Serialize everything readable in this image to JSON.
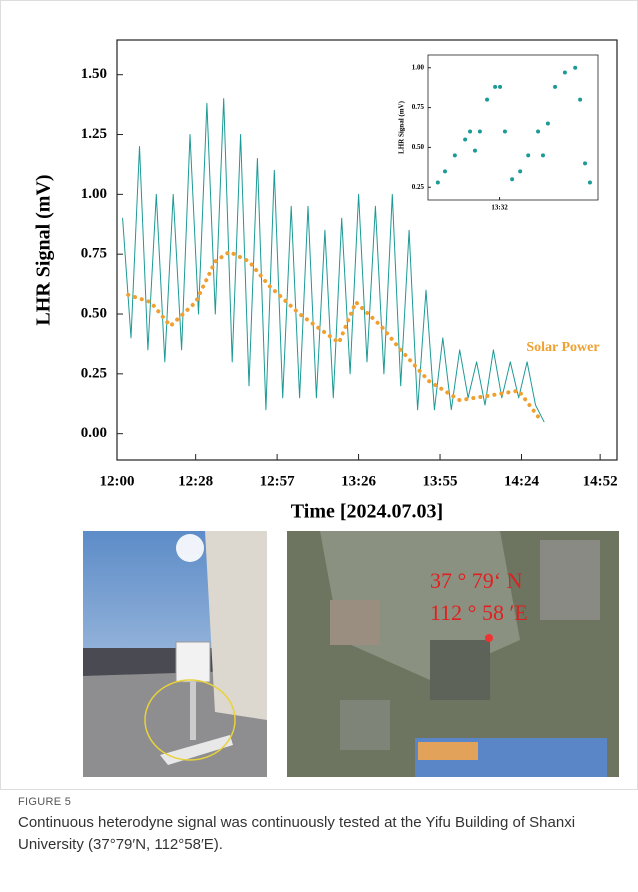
{
  "chart_data": [
    {
      "type": "line",
      "y_label": "LHR Signal (mV)",
      "x_label": "Time  [2024.07.03]",
      "xlim": [
        720,
        898
      ],
      "ylim": [
        -0.11,
        1.645
      ],
      "xticks": [
        {
          "value": 720,
          "label": "12:00"
        },
        {
          "value": 748,
          "label": "12:28"
        },
        {
          "value": 777,
          "label": "12:57"
        },
        {
          "value": 806,
          "label": "13:26"
        },
        {
          "value": 835,
          "label": "13:55"
        },
        {
          "value": 864,
          "label": "14:24"
        },
        {
          "value": 892,
          "label": "14:52"
        }
      ],
      "yticks": [
        {
          "value": 0,
          "label": "0.00"
        },
        0.25,
        {
          "value": 0.5,
          "label": "0.50"
        },
        0.75,
        {
          "value": 1,
          "label": "1.00"
        },
        1.25,
        {
          "value": 1.5,
          "label": "1.50"
        }
      ],
      "series": [
        {
          "color": "#1c9a95",
          "style": "solid",
          "x": [
            722,
            725,
            728,
            731,
            734,
            737,
            740,
            743,
            746,
            749,
            752,
            755,
            758,
            761,
            764,
            767,
            770,
            773,
            776,
            779,
            782,
            785,
            788,
            791,
            794,
            797,
            800,
            803,
            806,
            809,
            812,
            815,
            818,
            821,
            824,
            827,
            830,
            833,
            836,
            839,
            842,
            845,
            848,
            851,
            854,
            857,
            860,
            863,
            866,
            869,
            872
          ],
          "values": [
            0.9,
            0.4,
            1.2,
            0.35,
            1.0,
            0.3,
            1.0,
            0.35,
            1.25,
            0.5,
            1.38,
            0.5,
            1.4,
            0.3,
            1.25,
            0.2,
            1.15,
            0.1,
            1.1,
            0.15,
            0.95,
            0.15,
            0.95,
            0.15,
            0.85,
            0.15,
            0.9,
            0.25,
            1.0,
            0.3,
            0.95,
            0.25,
            1.0,
            0.2,
            0.85,
            0.1,
            0.6,
            0.1,
            0.4,
            0.1,
            0.35,
            0.15,
            0.3,
            0.12,
            0.35,
            0.15,
            0.3,
            0.15,
            0.3,
            0.12,
            0.05
          ]
        },
        {
          "name": "Solar Power",
          "color": "#f0a030",
          "style": "dotted",
          "x": [
            724,
            732,
            739,
            748,
            755,
            760,
            767,
            774,
            785,
            792,
            799,
            805,
            814,
            821,
            831,
            842,
            853,
            863,
            870
          ],
          "values": [
            0.58,
            0.55,
            0.45,
            0.55,
            0.72,
            0.76,
            0.72,
            0.62,
            0.5,
            0.44,
            0.38,
            0.55,
            0.45,
            0.35,
            0.22,
            0.14,
            0.16,
            0.18,
            0.07
          ]
        }
      ]
    },
    {
      "type": "scatter",
      "y_label": "LHR Signal (mV)",
      "xlim": [
        810.4,
        814.2
      ],
      "ylim": [
        0.17,
        1.08
      ],
      "xticks": [
        {
          "value": 812,
          "label": "13:32"
        }
      ],
      "yticks": [
        0.25,
        {
          "value": 0.5,
          "label": "0.50"
        },
        0.75,
        {
          "value": 1,
          "label": "1.00"
        }
      ],
      "series": [
        {
          "color": "#1c9a95",
          "x": [
            810.62,
            810.78,
            811.0,
            811.23,
            811.34,
            811.45,
            811.56,
            811.72,
            811.9,
            812.01,
            812.12,
            812.28,
            812.46,
            812.64,
            812.86,
            812.97,
            813.08,
            813.24,
            813.46,
            813.69,
            813.8,
            813.91,
            814.02
          ],
          "values": [
            0.28,
            0.35,
            0.45,
            0.55,
            0.6,
            0.48,
            0.6,
            0.8,
            0.88,
            0.88,
            0.6,
            0.3,
            0.35,
            0.45,
            0.6,
            0.45,
            0.65,
            0.88,
            0.97,
            1.0,
            0.8,
            0.4,
            0.28
          ]
        }
      ]
    }
  ],
  "photos": {
    "map_coordinates": [
      "37 ° 79‘ N",
      "112 ° 58 ′E"
    ]
  },
  "figure": {
    "label": "FIGURE 5",
    "caption": "Continuous heterodyne signal was continuously tested at the Yifu Building of Shanxi University (37°79′N, 112°58′E)."
  }
}
